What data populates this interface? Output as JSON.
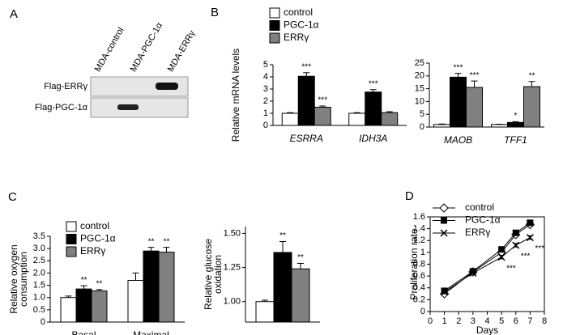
{
  "panel_labels": [
    "A",
    "B",
    "C",
    "D"
  ],
  "blot": {
    "columns": [
      "MDA-control",
      "MDA-PGC-1α",
      "MDA-ERRγ"
    ],
    "rows": [
      "Flag-ERRγ",
      "Flag-PGC-1α"
    ]
  },
  "chart_data": [
    {
      "type": "bar",
      "ylabel": [
        "Relative mRNA levels"
      ],
      "categories": [
        "ESRRA",
        "IDH3A"
      ],
      "italic_categories": true,
      "ylim": [
        0,
        5
      ],
      "yticks": [
        0,
        1,
        2,
        3,
        4,
        5
      ],
      "legend": true,
      "series": [
        {
          "name": "control",
          "color": "#ffffff",
          "values": [
            1,
            1
          ],
          "errors": [
            0.05,
            0.05
          ],
          "annotations": [
            null,
            null
          ]
        },
        {
          "name": "PGC-1α",
          "color": "#000000",
          "values": [
            4.05,
            2.75
          ],
          "errors": [
            0.3,
            0.2
          ],
          "annotations": [
            "***",
            "***"
          ]
        },
        {
          "name": "ERRγ",
          "color": "#808080",
          "values": [
            1.5,
            1.05
          ],
          "errors": [
            0.1,
            0.08
          ],
          "annotations": [
            "***",
            null
          ]
        }
      ]
    },
    {
      "type": "bar",
      "categories": [
        "MAOB",
        "TFF1"
      ],
      "italic_categories": true,
      "ylim": [
        0,
        25
      ],
      "yticks": [
        0,
        5,
        10,
        15,
        20,
        25
      ],
      "legend": false,
      "series": [
        {
          "color": "#ffffff",
          "values": [
            1,
            1
          ],
          "errors": [
            0.2,
            0.1
          ],
          "annotations": [
            null,
            null
          ]
        },
        {
          "color": "#000000",
          "values": [
            19.5,
            1.8
          ],
          "errors": [
            1.5,
            0.3
          ],
          "annotations": [
            "***",
            "*"
          ]
        },
        {
          "color": "#808080",
          "values": [
            15.5,
            15.8
          ],
          "errors": [
            2.5,
            2
          ],
          "annotations": [
            "***",
            "**"
          ]
        }
      ]
    },
    {
      "type": "bar",
      "ylabel": [
        "Relative oxygen",
        "consumption"
      ],
      "categories": [
        "Basal",
        "Maximal"
      ],
      "italic_categories": false,
      "ylim": [
        0,
        3.5
      ],
      "yticks": [
        0,
        0.5,
        {
          "value": 1,
          "label": "1.0"
        },
        1.5,
        {
          "value": 2,
          "label": "2.0"
        },
        2.5,
        {
          "value": 3,
          "label": "3.0"
        },
        3.5
      ],
      "legend": true,
      "series": [
        {
          "name": "control",
          "color": "#ffffff",
          "values": [
            1,
            1.7
          ],
          "errors": [
            0.06,
            0.3
          ],
          "annotations": [
            null,
            null
          ]
        },
        {
          "name": "PGC-1α",
          "color": "#000000",
          "values": [
            1.35,
            2.9
          ],
          "errors": [
            0.13,
            0.15
          ],
          "annotations": [
            "**",
            "**"
          ]
        },
        {
          "name": "ERRγ",
          "color": "#808080",
          "values": [
            1.27,
            2.85
          ],
          "errors": [
            0.06,
            0.2
          ],
          "annotations": [
            "**",
            "**"
          ]
        }
      ]
    },
    {
      "type": "bar",
      "ylabel": [
        "Relative glucose",
        "oxidation"
      ],
      "categories": [
        null
      ],
      "italic_categories": false,
      "ylim": [
        0.85,
        1.55
      ],
      "yticks": [
        {
          "value": 1,
          "label": "1.00"
        },
        {
          "value": 1.25,
          "label": "1.25"
        },
        {
          "value": 1.5,
          "label": "1.50"
        }
      ],
      "legend": false,
      "series": [
        {
          "color": "#ffffff",
          "values": [
            1.0
          ],
          "errors": [
            0.01
          ],
          "annotations": [
            null
          ]
        },
        {
          "color": "#000000",
          "values": [
            1.36
          ],
          "errors": [
            0.08
          ],
          "annotations": [
            "**"
          ]
        },
        {
          "color": "#808080",
          "values": [
            1.24
          ],
          "errors": [
            0.04
          ],
          "annotations": [
            "**"
          ]
        }
      ]
    },
    {
      "type": "line",
      "xlabel": "Days",
      "ylabel": [
        "Proliferation rate"
      ],
      "x": [
        1,
        3,
        5,
        6,
        7
      ],
      "xlim": [
        0,
        8
      ],
      "xticks": [
        0,
        1,
        2,
        3,
        4,
        5,
        6,
        7,
        8
      ],
      "ylim": [
        0,
        1.6
      ],
      "yticks": [
        0,
        0.2,
        0.4,
        0.6,
        0.8,
        1,
        1.2,
        1.4,
        1.6
      ],
      "legend": true,
      "series": [
        {
          "name": "control",
          "color": "#000000",
          "marker": "diamond-open",
          "values": [
            0.3,
            0.67,
            1.0,
            1.3,
            1.47
          ],
          "errors": [
            0.03,
            0.02,
            0.03,
            0.03,
            0.03
          ],
          "annotations": [
            null,
            null,
            null,
            null,
            null
          ]
        },
        {
          "name": "PGC-1α",
          "color": "#000000",
          "marker": "square",
          "values": [
            0.35,
            0.68,
            1.05,
            1.33,
            1.5
          ],
          "errors": [
            0.03,
            0.02,
            0.03,
            0.03,
            0.03
          ],
          "annotations": [
            null,
            null,
            null,
            null,
            null
          ]
        },
        {
          "name": "ERRγ",
          "color": "#000000",
          "marker": "x",
          "values": [
            0.33,
            0.65,
            0.92,
            1.12,
            1.25
          ],
          "errors": [
            0.03,
            0.02,
            0.03,
            0.03,
            0.03
          ],
          "annotations": [
            null,
            null,
            "***",
            "***",
            "***"
          ]
        }
      ]
    }
  ]
}
